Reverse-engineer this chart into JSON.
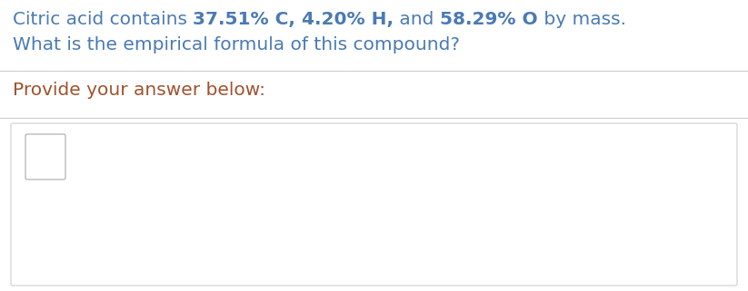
{
  "line1_parts": [
    {
      "text": "Citric acid contains ",
      "bold": false,
      "color": "#4a7ab5"
    },
    {
      "text": "37.51% C, ",
      "bold": true,
      "color": "#4a7ab5"
    },
    {
      "text": "4.20% H,",
      "bold": true,
      "color": "#4a7ab5"
    },
    {
      "text": " and ",
      "bold": false,
      "color": "#4a7ab5"
    },
    {
      "text": "58.29% O",
      "bold": true,
      "color": "#4a7ab5"
    },
    {
      "text": " by mass.",
      "bold": false,
      "color": "#4a7ab5"
    }
  ],
  "line2": "What is the empirical formula of this compound?",
  "line2_color": "#4a7ab5",
  "provide_text": "Provide your answer below:",
  "provide_color": "#a0522d",
  "background_color": "#ffffff",
  "separator_color": "#cccccc",
  "answer_box_edge": "#d0d0d0",
  "small_box_color": "#aaaaaa",
  "font_size": 14.5
}
